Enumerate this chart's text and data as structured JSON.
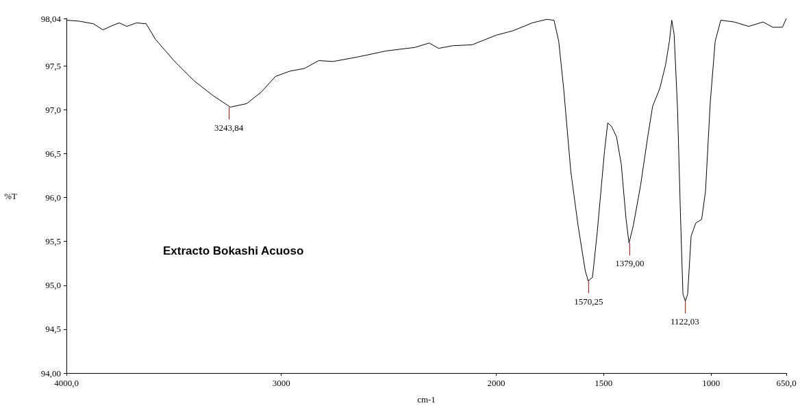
{
  "chart_data": {
    "type": "line",
    "xlabel": "cm-1",
    "ylabel": "%T",
    "x": [
      4000,
      3942,
      3875,
      3830,
      3786,
      3754,
      3719,
      3674,
      3629,
      3585,
      3496,
      3406,
      3317,
      3237,
      3161,
      3094,
      3027,
      2960,
      2893,
      2826,
      2759,
      2647,
      2513,
      2379,
      2312,
      2268,
      2201,
      2112,
      2000,
      1922,
      1832,
      1765,
      1731,
      1709,
      1686,
      1653,
      1619,
      1586,
      1572,
      1552,
      1530,
      1496,
      1481,
      1463,
      1440,
      1418,
      1396,
      1382,
      1362,
      1328,
      1295,
      1272,
      1239,
      1212,
      1194,
      1183,
      1172,
      1156,
      1142,
      1131,
      1120,
      1109,
      1093,
      1071,
      1044,
      1026,
      1004,
      981,
      955,
      892,
      825,
      758,
      713,
      668,
      650
    ],
    "values": [
      98.02,
      98.01,
      97.98,
      97.91,
      97.96,
      97.99,
      97.95,
      97.99,
      97.98,
      97.8,
      97.55,
      97.33,
      97.16,
      97.03,
      97.07,
      97.2,
      97.38,
      97.44,
      97.47,
      97.56,
      97.55,
      97.6,
      97.67,
      97.71,
      97.76,
      97.7,
      97.73,
      97.74,
      97.85,
      97.9,
      97.99,
      98.03,
      98.02,
      97.78,
      97.24,
      96.3,
      95.68,
      95.17,
      95.05,
      95.09,
      95.6,
      96.53,
      96.85,
      96.81,
      96.69,
      96.38,
      95.76,
      95.48,
      95.68,
      96.14,
      96.69,
      97.04,
      97.24,
      97.51,
      97.78,
      98.02,
      97.86,
      97.0,
      95.76,
      94.9,
      94.82,
      94.9,
      95.56,
      95.71,
      95.75,
      96.07,
      97.08,
      97.78,
      98.02,
      98.0,
      97.95,
      98.0,
      97.94,
      97.94,
      98.04
    ],
    "color": "#000000",
    "marker": "none",
    "line_style": "solid",
    "grid": false,
    "xlim": [
      4000,
      650
    ],
    "xticks": [
      {
        "value": 4000,
        "label": "4000,0"
      },
      3000,
      2000,
      1500,
      1000,
      {
        "value": 650,
        "label": "650,0"
      }
    ],
    "ylim": [
      94,
      98.04
    ],
    "yticks": [
      {
        "value": 94,
        "label": "94,00"
      },
      {
        "value": 94.5,
        "label": "94,5"
      },
      {
        "value": 95,
        "label": "95,0"
      },
      {
        "value": 95.5,
        "label": "95,5"
      },
      {
        "value": 96,
        "label": "96,0"
      },
      {
        "value": 96.5,
        "label": "96,5"
      },
      {
        "value": 97,
        "label": "97,0"
      },
      {
        "value": 97.5,
        "label": "97,5"
      },
      {
        "value": 98.04,
        "label": "98,04"
      }
    ],
    "annotations": [
      {
        "text": "3243,84",
        "x": 3243.84,
        "y": 97.03
      },
      {
        "text": "1570,25",
        "x": 1570.25,
        "y": 95.05
      },
      {
        "text": "1379,00",
        "x": 1379,
        "y": 95.48
      },
      {
        "text": "1122,03",
        "x": 1122.03,
        "y": 94.82
      },
      "Extracto Bokashi Acuoso"
    ]
  }
}
